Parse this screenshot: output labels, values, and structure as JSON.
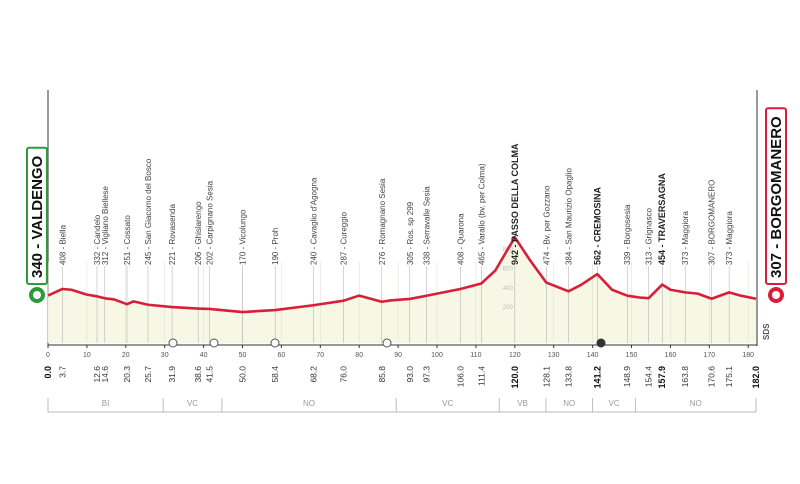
{
  "chart_data": {
    "type": "area",
    "line_color": "#d81f3a",
    "fill_color": "#f7f7e6",
    "grid": true,
    "xlim": [
      0,
      182
    ],
    "ylim": [
      -150,
      1100
    ],
    "xticks": [
      0,
      10,
      20,
      30,
      40,
      50,
      60,
      70,
      80,
      90,
      100,
      110,
      120,
      130,
      140,
      150,
      160,
      170,
      180
    ],
    "yticks": [
      200,
      400,
      600,
      800
    ],
    "x": [
      0,
      3.7,
      6,
      10,
      12.6,
      14.6,
      17,
      20.3,
      22,
      25.7,
      31.9,
      38.6,
      41.5,
      50,
      58.4,
      68.2,
      76,
      80,
      85.8,
      88,
      93,
      97.3,
      100,
      106,
      111.4,
      115,
      120,
      124,
      128.1,
      133.8,
      137,
      141.2,
      145,
      148.9,
      152,
      154.4,
      157.9,
      160,
      163.8,
      167,
      170.6,
      175.1,
      178,
      182
    ],
    "values": [
      340,
      408,
      400,
      350,
      332,
      312,
      300,
      251,
      280,
      245,
      221,
      206,
      202,
      170,
      190,
      240,
      287,
      340,
      276,
      290,
      305,
      338,
      360,
      408,
      465,
      600,
      942,
      700,
      474,
      384,
      450,
      562,
      400,
      339,
      320,
      313,
      454,
      400,
      373,
      360,
      307,
      373,
      340,
      307
    ],
    "waypoints": [
      {
        "km": {
          "value": 0,
          "label": "0.0"
        },
        "label": "340 - VALDENGO",
        "elevation": 340,
        "kind": "start",
        "color": "#2a9a3a"
      },
      {
        "km": 3.7,
        "label": "408 - Biella",
        "elevation": 408
      },
      {
        "km": 12.6,
        "label": "332 - Candelo",
        "elevation": 332
      },
      {
        "km": 14.6,
        "label": "312 - Vigliano Biellese",
        "elevation": 312
      },
      {
        "km": 20.3,
        "label": "251 - Cossato",
        "elevation": 251
      },
      {
        "km": 25.7,
        "label": "245 - San Giacomo del Bosco",
        "elevation": 245
      },
      {
        "km": 31.9,
        "label": "221 - Rovasenda",
        "elevation": 221
      },
      {
        "km": 38.6,
        "label": "206 - Ghislarengo",
        "elevation": 206
      },
      {
        "km": 41.5,
        "label": "202 - Carpignano Sesia",
        "elevation": 202
      },
      {
        "km": {
          "value": 50,
          "label": "50.0"
        },
        "label": "170 - Vicolungo",
        "elevation": 170
      },
      {
        "km": 58.4,
        "label": "190 - Proh",
        "elevation": 190
      },
      {
        "km": 68.2,
        "label": "240 - Cavaglio d'Agogna",
        "elevation": 240
      },
      {
        "km": {
          "value": 76,
          "label": "76.0"
        },
        "label": "287 - Cureggio",
        "elevation": 287
      },
      {
        "km": 85.8,
        "label": "276 - Romagnano Sesia",
        "elevation": 276
      },
      {
        "km": {
          "value": 93,
          "label": "93.0"
        },
        "label": "305 - Ros. sp 299",
        "elevation": 305
      },
      {
        "km": 97.3,
        "label": "338 - Serravalle Sesia",
        "elevation": 338
      },
      {
        "km": {
          "value": 106,
          "label": "106.0"
        },
        "label": "408 - Quarona",
        "elevation": 408
      },
      {
        "km": 111.4,
        "label": "465 - Varallo (bv. per Colma)",
        "elevation": 465
      },
      {
        "km": {
          "value": 120,
          "label": "120.0"
        },
        "label": "942 - PASSO DELLA COLMA",
        "elevation": 942,
        "kind": "climb"
      },
      {
        "km": 128.1,
        "label": "474 - Bv. per Gozzano",
        "elevation": 474
      },
      {
        "km": 133.8,
        "label": "384 - San Maurizio Opaglio",
        "elevation": 384
      },
      {
        "km": 141.2,
        "label": "562 - CREMOSINA",
        "elevation": 562,
        "kind": "climb"
      },
      {
        "km": 148.9,
        "label": "339 - Borgosesia",
        "elevation": 339
      },
      {
        "km": 154.4,
        "label": "313 - Grignasco",
        "elevation": 313
      },
      {
        "km": 157.9,
        "label": "454 - TRAVERSAGNA",
        "elevation": 454,
        "kind": "climb"
      },
      {
        "km": 163.8,
        "label": "373 - Maggiora",
        "elevation": 373
      },
      {
        "km": 170.6,
        "label": "307 - BORGOMANERO",
        "elevation": 307
      },
      {
        "km": 175.1,
        "label": "373 - Maggiora",
        "elevation": 373
      },
      {
        "km": {
          "value": 182,
          "label": "182.0"
        },
        "label": "307 - BORGOMANERO",
        "elevation": 307,
        "kind": "finish",
        "color": "#d81f3a"
      }
    ],
    "regions": [
      {
        "label": "BI",
        "start": 0,
        "end": 29.6
      },
      {
        "label": "VC",
        "start": 29.6,
        "end": 44.7
      },
      {
        "label": "NO",
        "start": 44.7,
        "end": 89.5
      },
      {
        "label": "VC",
        "start": 89.5,
        "end": 116
      },
      {
        "label": "VB",
        "start": 116,
        "end": 128
      },
      {
        "label": "NO",
        "start": 128,
        "end": 140
      },
      {
        "label": "VC",
        "start": 140,
        "end": 151
      },
      {
        "label": "NO",
        "start": 151,
        "end": 182
      }
    ],
    "logo": "SDS"
  }
}
